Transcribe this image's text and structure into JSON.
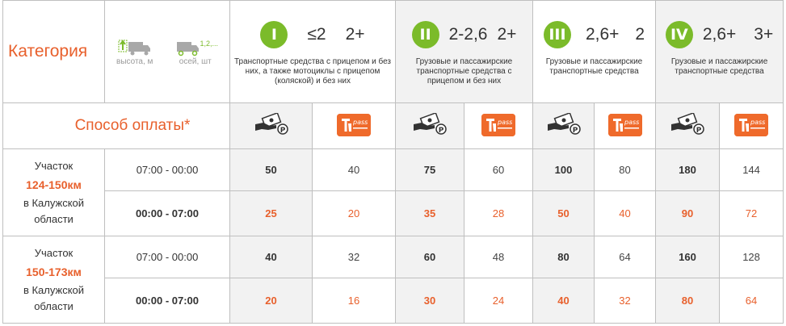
{
  "header": {
    "category_label": "Категория",
    "hint_height": "высота, м",
    "hint_axles": "осей, шт",
    "axles_mark": "1,2,..."
  },
  "classes": [
    {
      "badge": "I",
      "height": "≤2",
      "axles": "2+",
      "desc": "Транспортные средства с прицепом и без них, а также мотоциклы с прицепом (коляской) и без них"
    },
    {
      "badge": "II",
      "height": "2-2,6",
      "axles": "2+",
      "desc": "Грузовые и пассажирские транспортные средства с прицепом и без них"
    },
    {
      "badge": "III",
      "height": "2,6+",
      "axles": "2",
      "desc": "Грузовые и пассажирские транспортные средства"
    },
    {
      "badge": "IV",
      "height": "2,6+",
      "axles": "3+",
      "desc": "Грузовые и пассажирские транспортные средства"
    }
  ],
  "payment": {
    "label": "Способ оплаты*",
    "cash_icon": "cash-payment-icon",
    "transponder_icon": "t-pass-icon",
    "transponder_text": "pass"
  },
  "sections": [
    {
      "prefix": "Участок",
      "km": "124-150км",
      "suffix": "в Калужской области",
      "day": {
        "time": "07:00 - 00:00",
        "prices": [
          "50",
          "40",
          "75",
          "60",
          "100",
          "80",
          "180",
          "144"
        ]
      },
      "night": {
        "time": "00:00 - 07:00",
        "prices": [
          "25",
          "20",
          "35",
          "28",
          "50",
          "40",
          "90",
          "72"
        ]
      }
    },
    {
      "prefix": "Участок",
      "km": "150-173км",
      "suffix": "в Калужской области",
      "day": {
        "time": "07:00 - 00:00",
        "prices": [
          "40",
          "32",
          "60",
          "48",
          "80",
          "64",
          "160",
          "128"
        ]
      },
      "night": {
        "time": "00:00 - 07:00",
        "prices": [
          "20",
          "16",
          "30",
          "24",
          "40",
          "32",
          "80",
          "64"
        ]
      }
    }
  ],
  "colors": {
    "accent_orange": "#e8602c",
    "badge_green": "#7bbb2a",
    "shade": "#f2f2f2"
  }
}
